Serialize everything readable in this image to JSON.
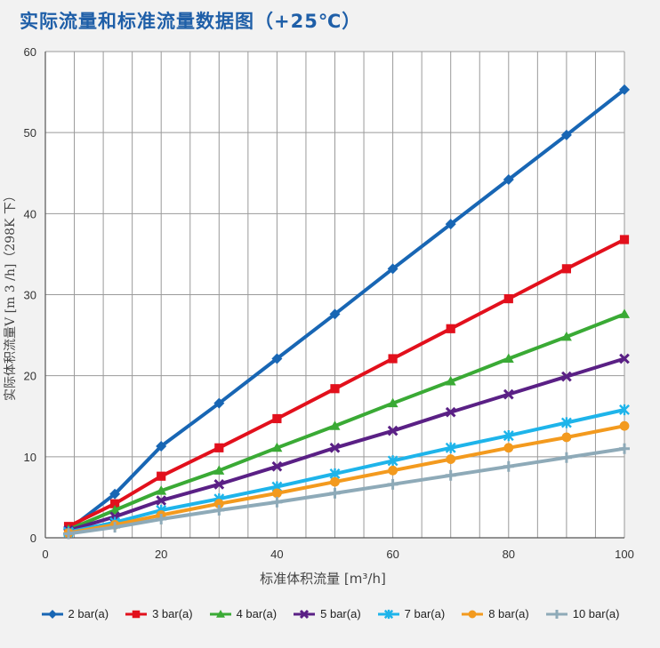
{
  "title": "实际流量和标准流量数据图（+25℃）",
  "chart_data": {
    "type": "line",
    "xlabel": "标准体积流量 [m³/h]",
    "ylabel": "实际体积流量V [m 3 /h]（298K 下）",
    "xlim": [
      0,
      100
    ],
    "ylim": [
      0,
      60
    ],
    "xticks": [
      "0",
      "20",
      "40",
      "60",
      "80",
      "100"
    ],
    "yticks": [
      "0",
      "10",
      "20",
      "30",
      "40",
      "50",
      "60"
    ],
    "grid": true,
    "legend_position": "bottom",
    "x": [
      4,
      12,
      20,
      30,
      40,
      50,
      60,
      70,
      80,
      90,
      100
    ],
    "series": [
      {
        "name": "2 bar(a)",
        "color": "#1866b4",
        "marker": "diamond",
        "values": [
          1.0,
          5.4,
          11.3,
          16.6,
          22.1,
          27.6,
          33.2,
          38.7,
          44.2,
          49.7,
          55.3
        ]
      },
      {
        "name": "3 bar(a)",
        "color": "#e2101c",
        "marker": "square",
        "values": [
          1.4,
          4.2,
          7.6,
          11.1,
          14.7,
          18.4,
          22.1,
          25.8,
          29.5,
          33.2,
          36.8
        ]
      },
      {
        "name": "4 bar(a)",
        "color": "#3aaa35",
        "marker": "triangle",
        "values": [
          1.0,
          3.4,
          5.8,
          8.3,
          11.1,
          13.8,
          16.6,
          19.3,
          22.1,
          24.8,
          27.6
        ]
      },
      {
        "name": "5 bar(a)",
        "color": "#5a2085",
        "marker": "x",
        "values": [
          0.9,
          2.6,
          4.6,
          6.6,
          8.8,
          11.1,
          13.2,
          15.5,
          17.7,
          19.9,
          22.1
        ]
      },
      {
        "name": "7 bar(a)",
        "color": "#1eb4ea",
        "marker": "star",
        "values": [
          0.7,
          1.9,
          3.4,
          4.8,
          6.3,
          7.9,
          9.5,
          11.1,
          12.6,
          14.2,
          15.8
        ]
      },
      {
        "name": "8 bar(a)",
        "color": "#f39a1e",
        "marker": "circle",
        "values": [
          0.6,
          1.6,
          2.8,
          4.2,
          5.5,
          6.9,
          8.3,
          9.7,
          11.1,
          12.4,
          13.8
        ]
      },
      {
        "name": "10 bar(a)",
        "color": "#8eaab8",
        "marker": "plus",
        "values": [
          0.5,
          1.3,
          2.3,
          3.4,
          4.4,
          5.5,
          6.6,
          7.7,
          8.8,
          9.9,
          11.0
        ]
      }
    ]
  }
}
